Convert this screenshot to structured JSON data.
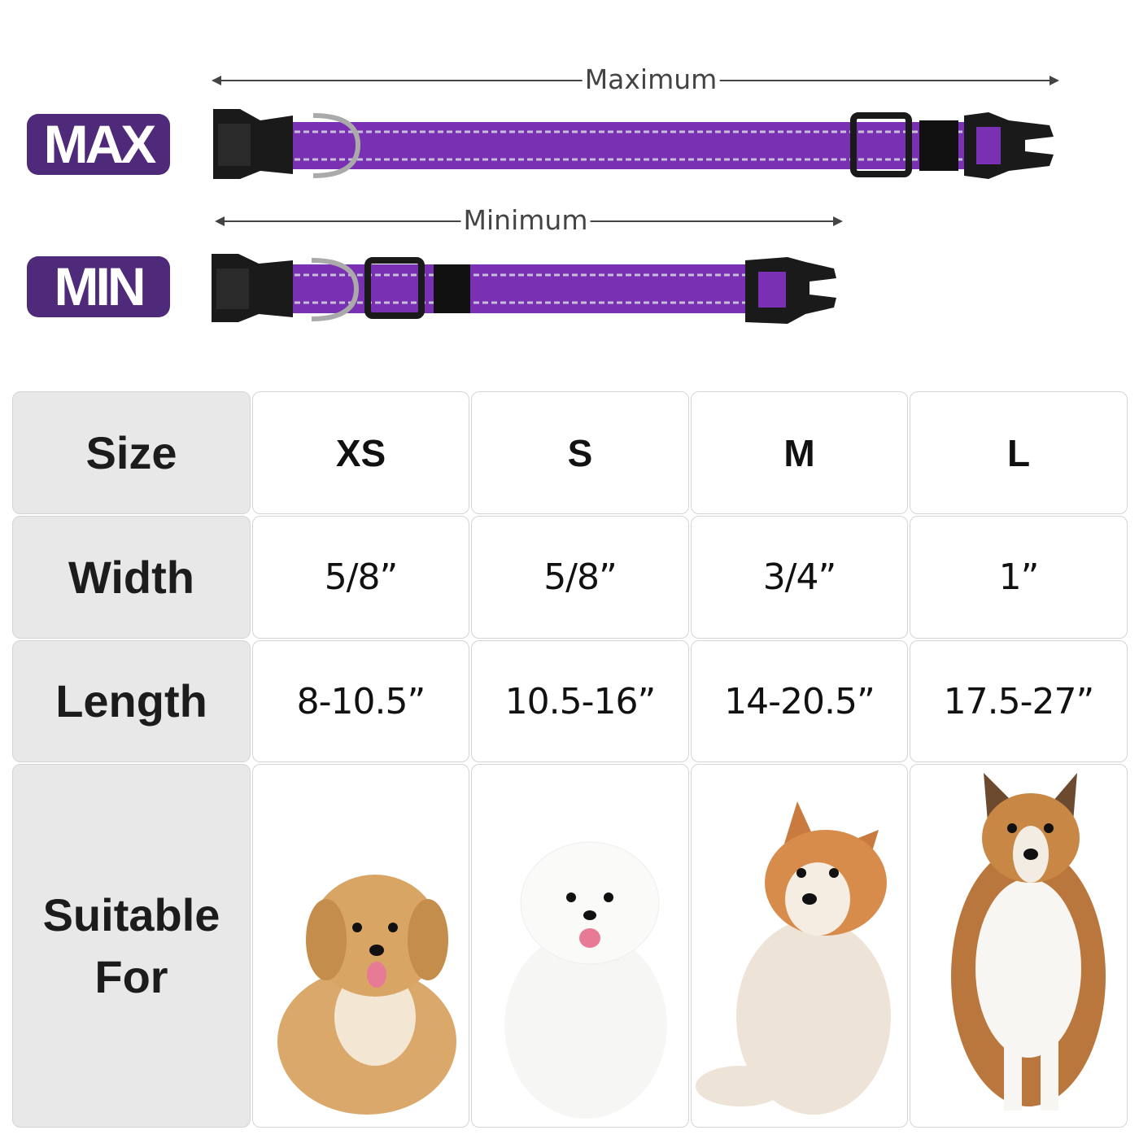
{
  "badges": {
    "max": "MAX",
    "min": "MIN"
  },
  "arrows": {
    "maximum": "Maximum",
    "minimum": "Minimum"
  },
  "colors": {
    "badge": "#4f2a7a",
    "collar": "#7a30b3",
    "buckle": "#1a1a1a",
    "label_cell": "#e8e8e8"
  },
  "table": {
    "row_labels": [
      "Size",
      "Width",
      "Length",
      "Suitable For"
    ],
    "sizes": [
      "XS",
      "S",
      "M",
      "L"
    ],
    "widths": [
      "5/8”",
      "5/8”",
      "3/4”",
      "1”"
    ],
    "lengths": [
      "8-10.5”",
      "10.5-16”",
      "14-20.5”",
      "17.5-27”"
    ],
    "dogs": [
      "poodle-mix-puppy",
      "white-pomeranian",
      "fluffy-spitz",
      "rough-collie"
    ]
  }
}
